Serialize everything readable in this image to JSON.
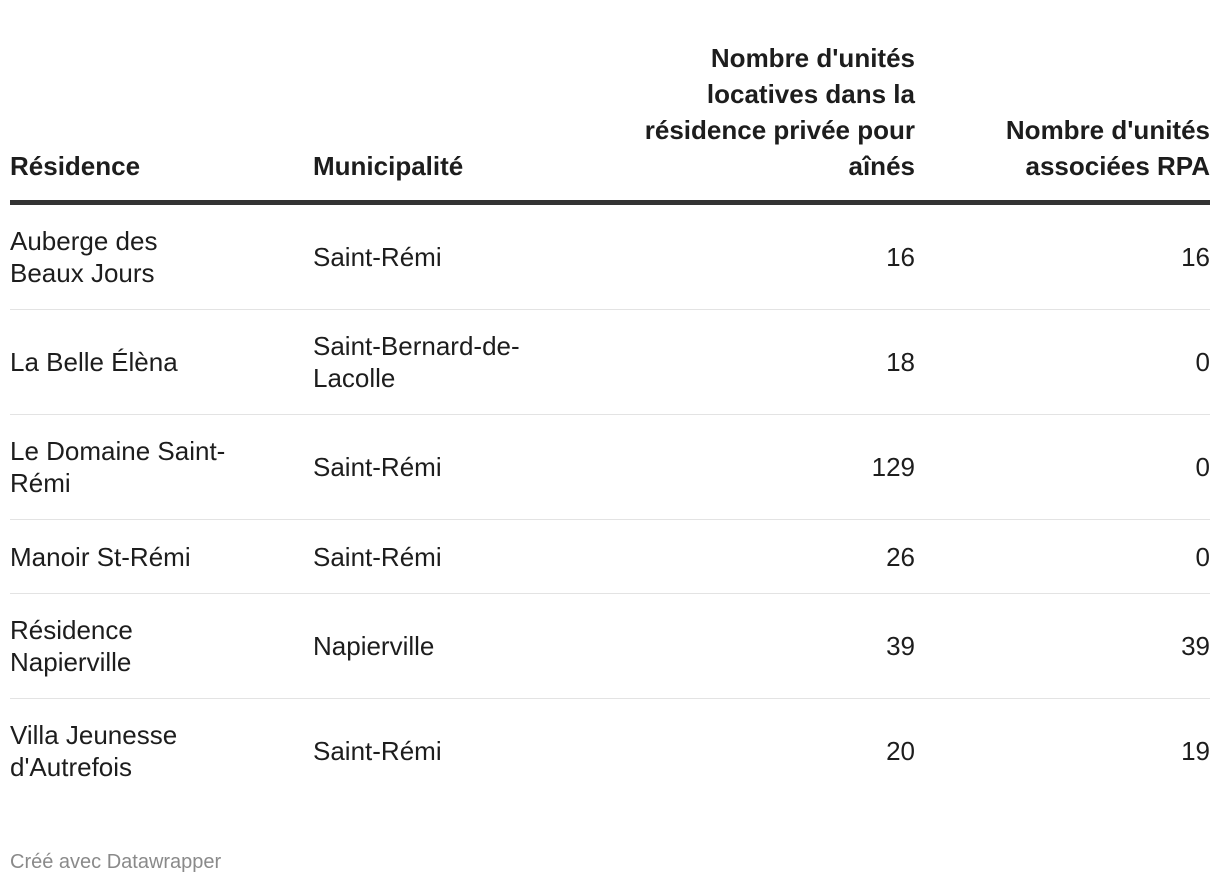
{
  "chart_data": {
    "type": "table",
    "columns": [
      "Résidence",
      "Municipalité",
      "Nombre d'unités locatives dans la résidence privée pour aînés",
      "Nombre d'unités associées RPA"
    ],
    "rows": [
      {
        "residence": "Auberge des Beaux Jours",
        "municipalite": "Saint-Rémi",
        "unites_locatives": 16,
        "unites_rpa": 16
      },
      {
        "residence": "La Belle Élèna",
        "municipalite": "Saint-Bernard-de-Lacolle",
        "unites_locatives": 18,
        "unites_rpa": 0
      },
      {
        "residence": "Le Domaine Saint-Rémi",
        "municipalite": "Saint-Rémi",
        "unites_locatives": 129,
        "unites_rpa": 0
      },
      {
        "residence": "Manoir St-Rémi",
        "municipalite": "Saint-Rémi",
        "unites_locatives": 26,
        "unites_rpa": 0
      },
      {
        "residence": "Résidence Napierville",
        "municipalite": "Napierville",
        "unites_locatives": 39,
        "unites_rpa": 39
      },
      {
        "residence": "Villa Jeunesse d'Autrefois",
        "municipalite": "Saint-Rémi",
        "unites_locatives": 20,
        "unites_rpa": 19
      }
    ]
  },
  "footer": {
    "credit": "Créé avec Datawrapper"
  }
}
